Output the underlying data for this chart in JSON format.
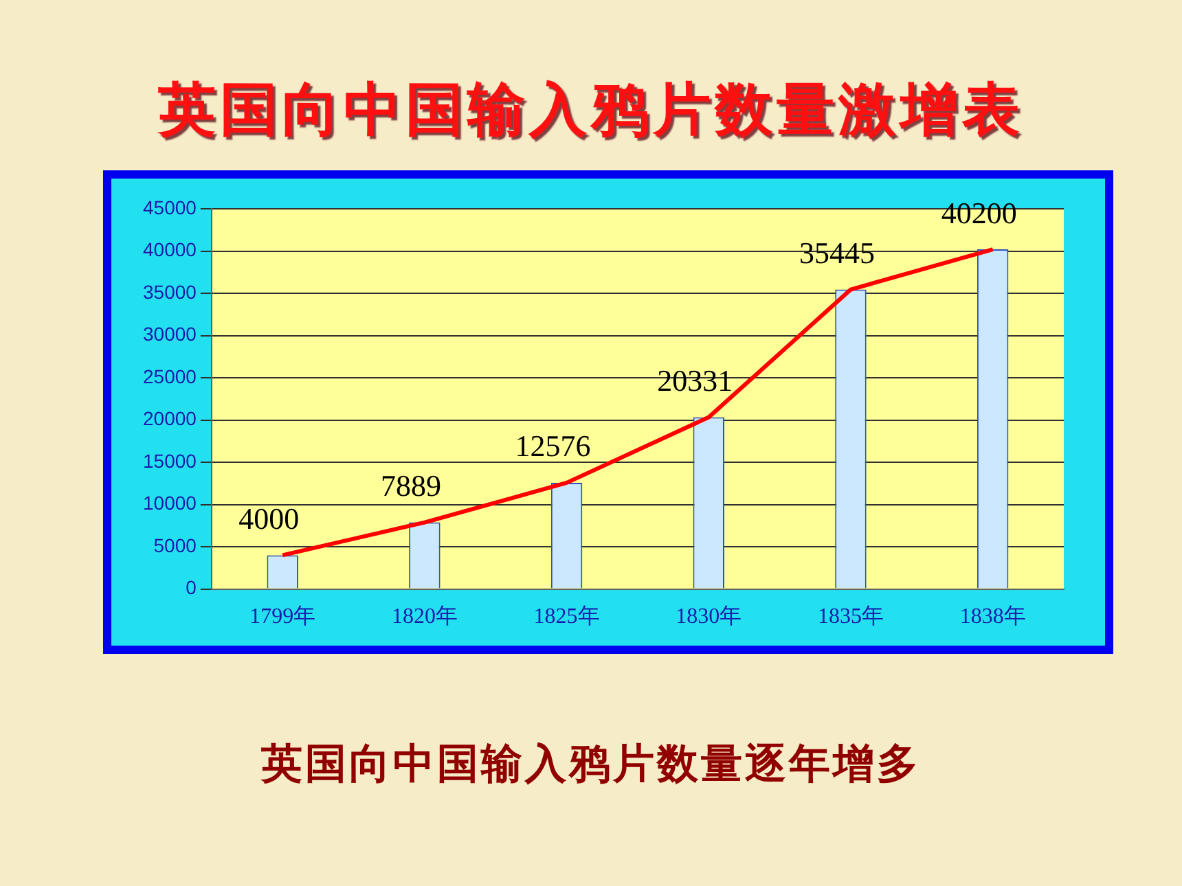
{
  "chart_data": {
    "type": "bar",
    "title": "英国向中国输入鸦片数量激增表",
    "categories": [
      "1799年",
      "1820年",
      "1825年",
      "1830年",
      "1835年",
      "1838年"
    ],
    "series": [
      {
        "color": "#cce8ff",
        "values": [
          4000,
          7889,
          12576,
          20331,
          35445,
          40200
        ],
        "value_labels": [
          "4000",
          "7889",
          "12576",
          "20331",
          "35445",
          "40200"
        ]
      },
      {
        "type": "line",
        "color": "#ff0000",
        "values": [
          4000,
          7889,
          12576,
          20331,
          35445,
          40200
        ]
      }
    ],
    "ylim": [
      0,
      45000
    ],
    "yticks": [
      0,
      5000,
      10000,
      15000,
      20000,
      25000,
      30000,
      35000,
      40000,
      45000
    ],
    "grid": "y",
    "legend": false,
    "marker": "none",
    "line_style": "solid",
    "annotations": [
      "英国向中国输入鸦片数量逐年增多"
    ]
  }
}
